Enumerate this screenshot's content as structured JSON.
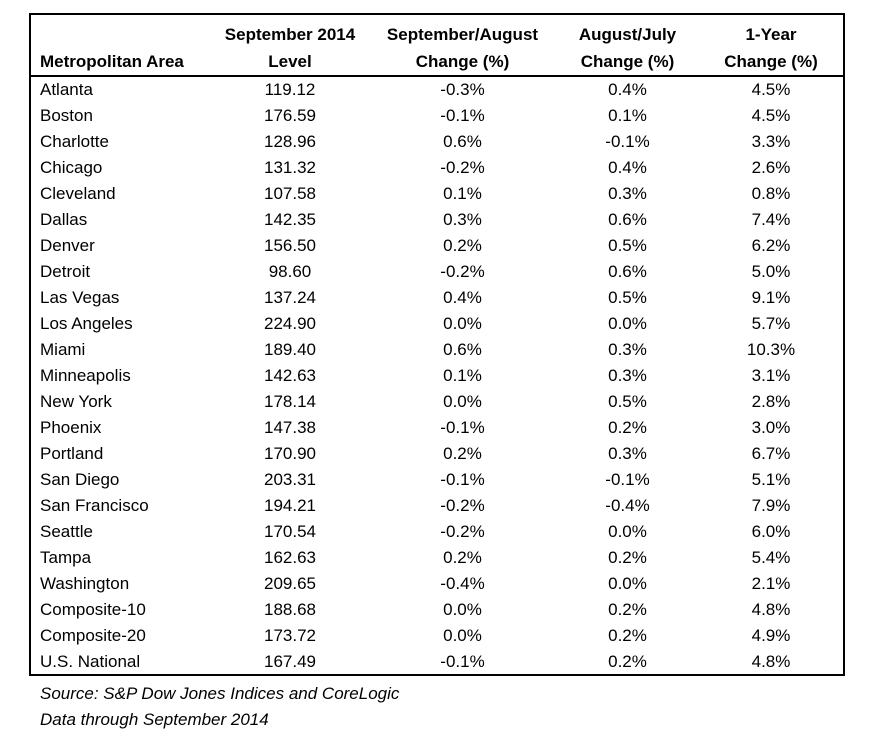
{
  "table": {
    "headers": [
      [
        "",
        "Metropolitan Area"
      ],
      [
        "September 2014",
        "Level"
      ],
      [
        "September/August",
        "Change (%)"
      ],
      [
        "August/July",
        "Change (%)"
      ],
      [
        "1-Year",
        "Change (%)"
      ]
    ],
    "rows": [
      [
        "Atlanta",
        "119.12",
        "-0.3%",
        "0.4%",
        "4.5%"
      ],
      [
        "Boston",
        "176.59",
        "-0.1%",
        "0.1%",
        "4.5%"
      ],
      [
        "Charlotte",
        "128.96",
        "0.6%",
        "-0.1%",
        "3.3%"
      ],
      [
        "Chicago",
        "131.32",
        "-0.2%",
        "0.4%",
        "2.6%"
      ],
      [
        "Cleveland",
        "107.58",
        "0.1%",
        "0.3%",
        "0.8%"
      ],
      [
        "Dallas",
        "142.35",
        "0.3%",
        "0.6%",
        "7.4%"
      ],
      [
        "Denver",
        "156.50",
        "0.2%",
        "0.5%",
        "6.2%"
      ],
      [
        "Detroit",
        "98.60",
        "-0.2%",
        "0.6%",
        "5.0%"
      ],
      [
        "Las Vegas",
        "137.24",
        "0.4%",
        "0.5%",
        "9.1%"
      ],
      [
        "Los Angeles",
        "224.90",
        "0.0%",
        "0.0%",
        "5.7%"
      ],
      [
        "Miami",
        "189.40",
        "0.6%",
        "0.3%",
        "10.3%"
      ],
      [
        "Minneapolis",
        "142.63",
        "0.1%",
        "0.3%",
        "3.1%"
      ],
      [
        "New York",
        "178.14",
        "0.0%",
        "0.5%",
        "2.8%"
      ],
      [
        "Phoenix",
        "147.38",
        "-0.1%",
        "0.2%",
        "3.0%"
      ],
      [
        "Portland",
        "170.90",
        "0.2%",
        "0.3%",
        "6.7%"
      ],
      [
        "San Diego",
        "203.31",
        "-0.1%",
        "-0.1%",
        "5.1%"
      ],
      [
        "San Francisco",
        "194.21",
        "-0.2%",
        "-0.4%",
        "7.9%"
      ],
      [
        "Seattle",
        "170.54",
        "-0.2%",
        "0.0%",
        "6.0%"
      ],
      [
        "Tampa",
        "162.63",
        "0.2%",
        "0.2%",
        "5.4%"
      ],
      [
        "Washington",
        "209.65",
        "-0.4%",
        "0.0%",
        "2.1%"
      ],
      [
        "Composite-10",
        "188.68",
        "0.0%",
        "0.2%",
        "4.8%"
      ],
      [
        "Composite-20",
        "173.72",
        "0.0%",
        "0.2%",
        "4.9%"
      ],
      [
        "U.S. National",
        "167.49",
        "-0.1%",
        "0.2%",
        "4.8%"
      ]
    ]
  },
  "footer": {
    "source": "Source: S&P Dow Jones Indices and CoreLogic",
    "data_through": "Data through September 2014"
  },
  "colors": {
    "border": "#000000",
    "text": "#000000",
    "background": "#ffffff"
  }
}
